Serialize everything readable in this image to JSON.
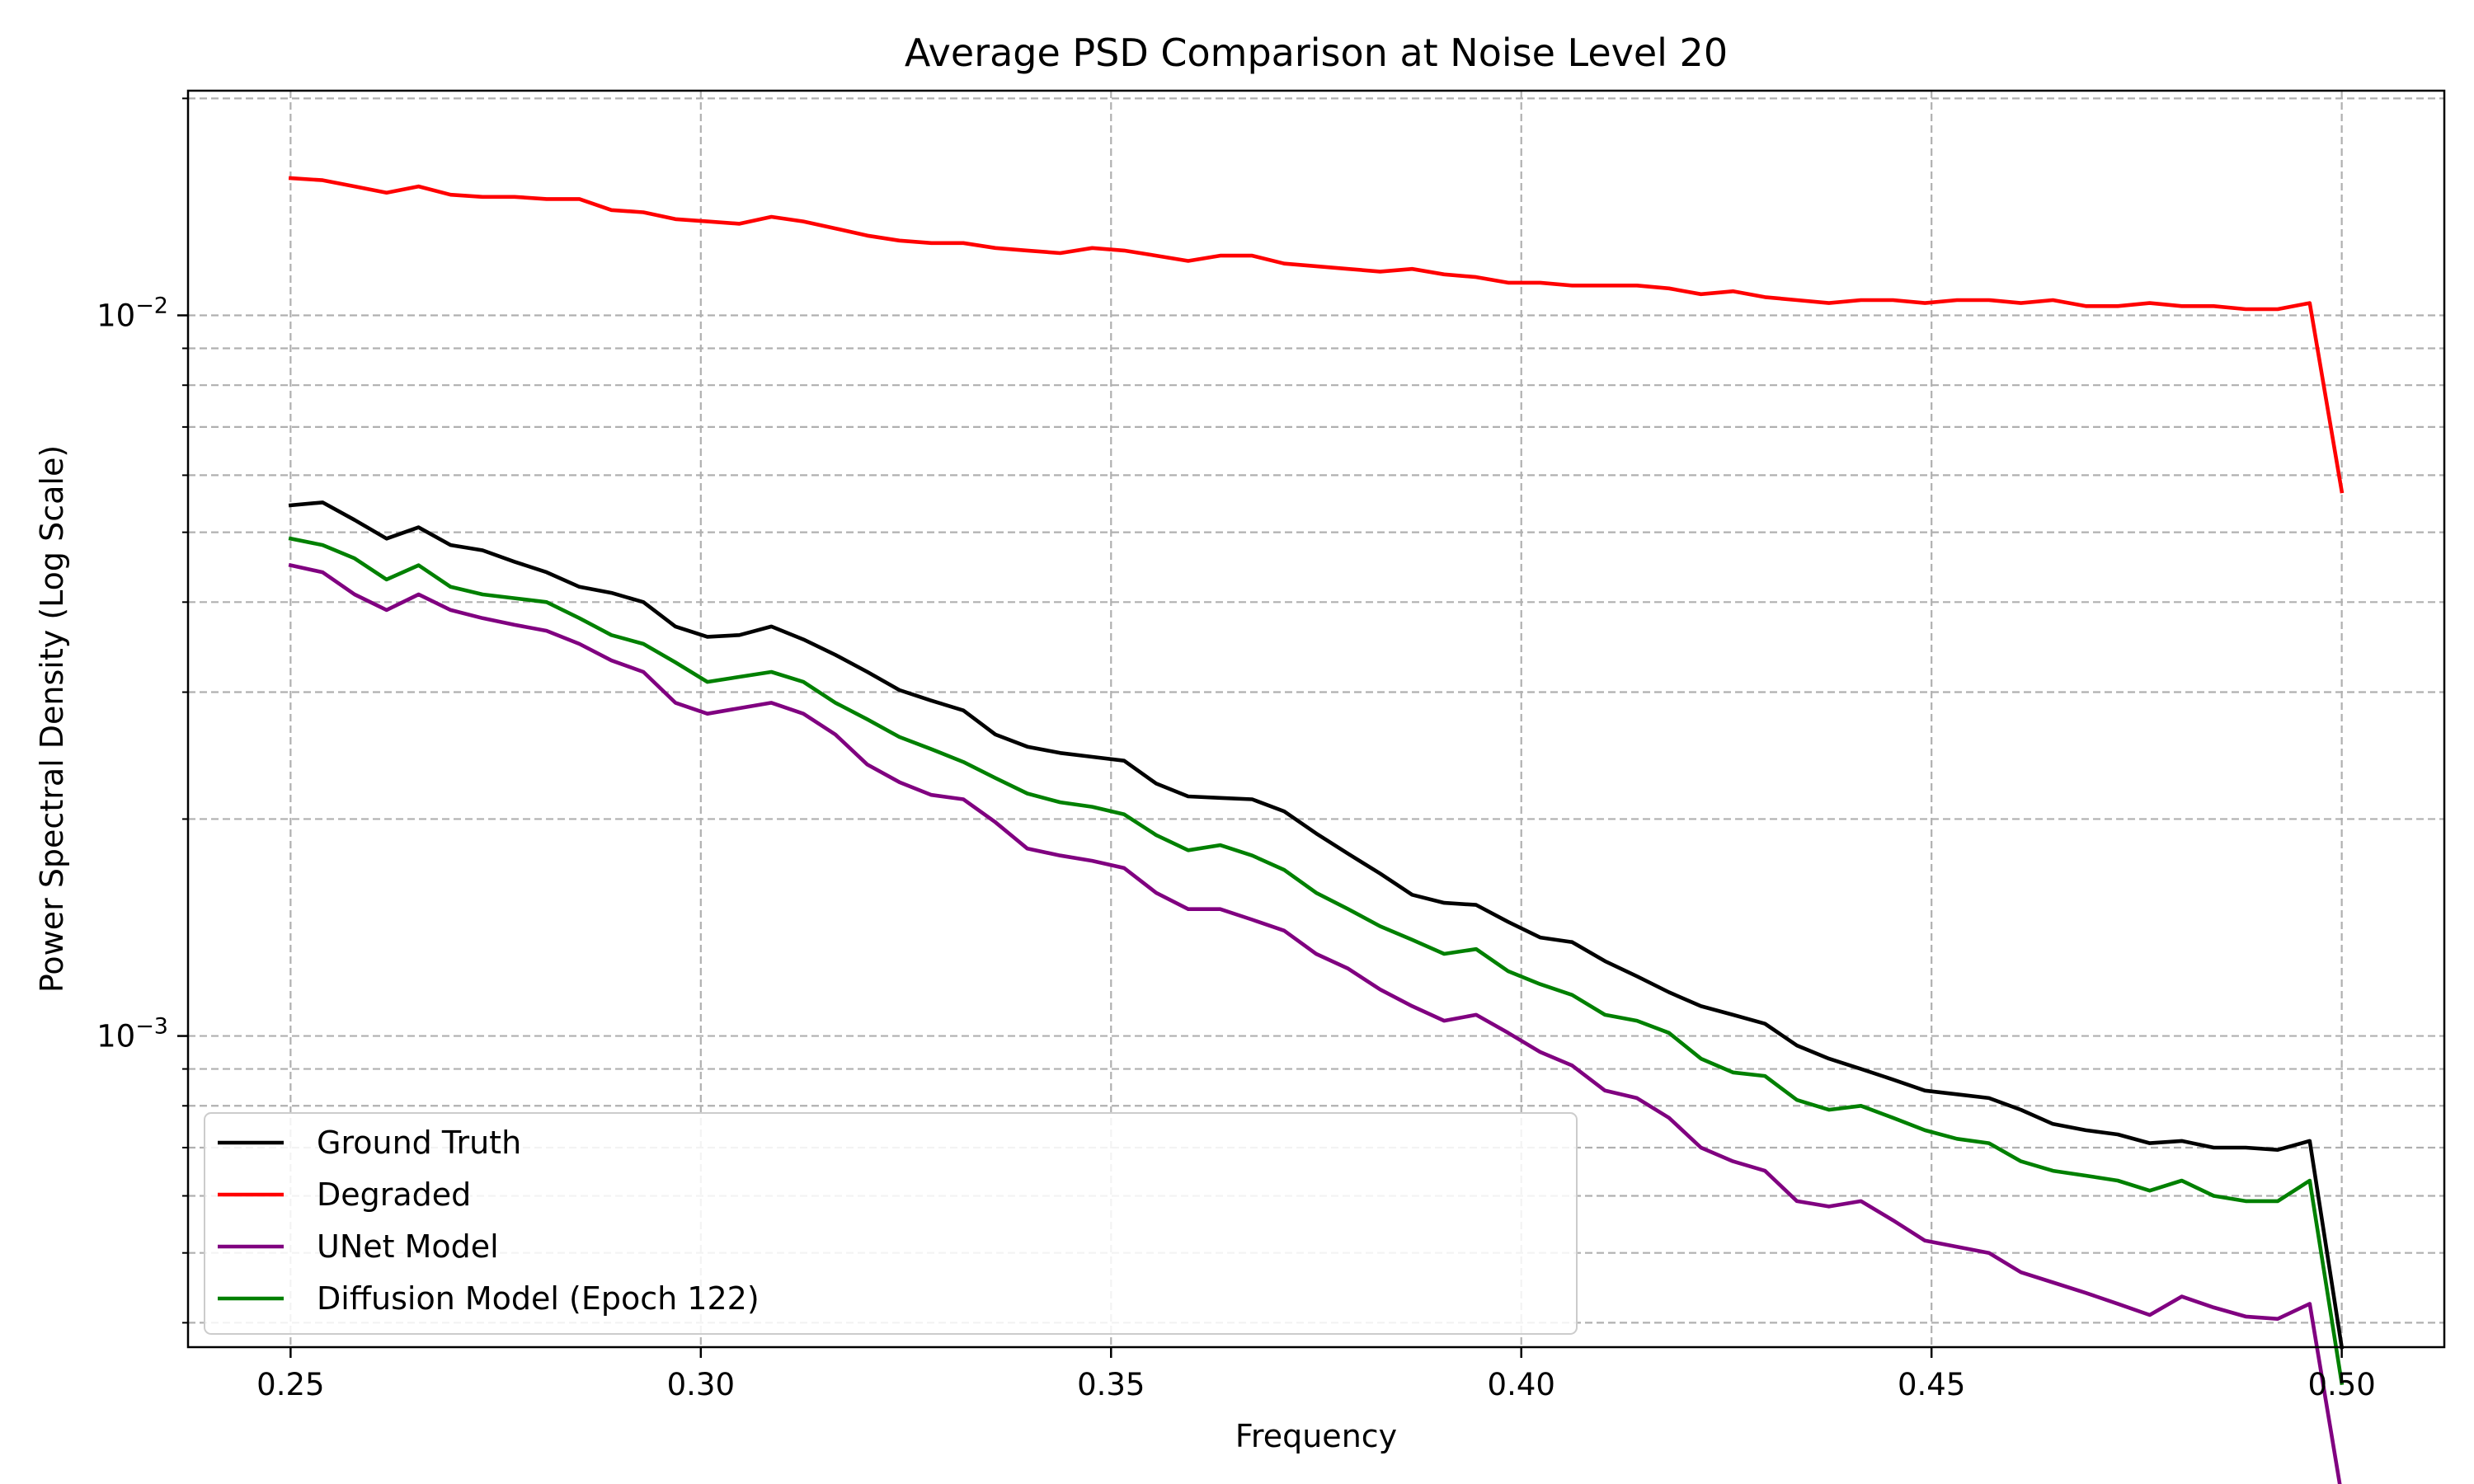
{
  "chart_data": {
    "type": "line",
    "title": "Average PSD Comparison at Noise Level 20",
    "xlabel": "Frequency",
    "ylabel": "Power Spectral Density (Log Scale)",
    "xlim": [
      0.2375,
      0.5125
    ],
    "ylim": [
      0.00037,
      0.0205
    ],
    "yscale": "log",
    "grid": "both (major and minor), dashed",
    "legend_position": "lower-left",
    "x_ticks": [
      "0.25",
      "0.30",
      "0.35",
      "0.40",
      "0.45",
      "0.50"
    ],
    "y_ticks": [
      {
        "base": "10",
        "exp": "−3",
        "value": 0.001
      },
      {
        "base": "10",
        "exp": "−2",
        "value": 0.01
      }
    ],
    "x": [
      0.25,
      0.2539,
      0.2578,
      0.2617,
      0.2656,
      0.2695,
      0.2734,
      0.2773,
      0.2812,
      0.2852,
      0.2891,
      0.293,
      0.2969,
      0.3008,
      0.3047,
      0.3086,
      0.3125,
      0.3164,
      0.3203,
      0.3242,
      0.3281,
      0.332,
      0.3359,
      0.3398,
      0.3438,
      0.3477,
      0.3516,
      0.3555,
      0.3594,
      0.3633,
      0.3672,
      0.3711,
      0.375,
      0.3789,
      0.3828,
      0.3867,
      0.3906,
      0.3945,
      0.3984,
      0.4023,
      0.4062,
      0.4102,
      0.4141,
      0.418,
      0.4219,
      0.4258,
      0.4297,
      0.4336,
      0.4375,
      0.4414,
      0.4453,
      0.4492,
      0.4531,
      0.457,
      0.4609,
      0.4648,
      0.4688,
      0.4727,
      0.4766,
      0.4805,
      0.4844,
      0.4883,
      0.4922,
      0.4961,
      0.5
    ],
    "series": [
      {
        "name": "Ground Truth",
        "color": "#000000",
        "values": [
          0.00545,
          0.0055,
          0.0052,
          0.0049,
          0.00508,
          0.0048,
          0.00472,
          0.00455,
          0.0044,
          0.0042,
          0.00412,
          0.004,
          0.0037,
          0.00358,
          0.0036,
          0.0037,
          0.00355,
          0.00338,
          0.0032,
          0.00302,
          0.00292,
          0.00283,
          0.00262,
          0.00252,
          0.00247,
          0.00244,
          0.00241,
          0.00224,
          0.00215,
          0.00214,
          0.00213,
          0.00205,
          0.00191,
          0.00179,
          0.00168,
          0.00157,
          0.00153,
          0.00152,
          0.00144,
          0.00137,
          0.00135,
          0.00127,
          0.00121,
          0.00115,
          0.0011,
          0.00107,
          0.00104,
          0.00097,
          0.00093,
          0.0009,
          0.00087,
          0.00084,
          0.00083,
          0.00082,
          0.00079,
          0.000755,
          0.00074,
          0.00073,
          0.00071,
          0.000715,
          0.0007,
          0.0007,
          0.000695,
          0.000715,
          0.00037
        ]
      },
      {
        "name": "Degraded",
        "color": "#ff0000",
        "values": [
          0.0155,
          0.0154,
          0.0151,
          0.0148,
          0.0151,
          0.0147,
          0.0146,
          0.0146,
          0.0145,
          0.0145,
          0.014,
          0.0139,
          0.0136,
          0.0135,
          0.0134,
          0.0137,
          0.0135,
          0.0132,
          0.0129,
          0.0127,
          0.0126,
          0.0126,
          0.0124,
          0.0123,
          0.0122,
          0.0124,
          0.0123,
          0.0121,
          0.0119,
          0.0121,
          0.0121,
          0.0118,
          0.0117,
          0.0116,
          0.0115,
          0.0116,
          0.0114,
          0.0113,
          0.0111,
          0.0111,
          0.011,
          0.011,
          0.011,
          0.0109,
          0.0107,
          0.0108,
          0.0106,
          0.0105,
          0.0104,
          0.0105,
          0.0105,
          0.0104,
          0.0105,
          0.0105,
          0.0104,
          0.0105,
          0.0103,
          0.0103,
          0.0104,
          0.0103,
          0.0103,
          0.0102,
          0.0102,
          0.0104,
          0.0057
        ]
      },
      {
        "name": "UNet Model",
        "color": "#800080",
        "values": [
          0.0045,
          0.0044,
          0.0041,
          0.0039,
          0.0041,
          0.0039,
          0.0038,
          0.00372,
          0.00365,
          0.0035,
          0.00332,
          0.0032,
          0.0029,
          0.0028,
          0.00285,
          0.0029,
          0.0028,
          0.00262,
          0.00238,
          0.00225,
          0.00216,
          0.00213,
          0.00198,
          0.00182,
          0.00178,
          0.00175,
          0.00171,
          0.00158,
          0.0015,
          0.0015,
          0.00145,
          0.0014,
          0.0013,
          0.00124,
          0.00116,
          0.0011,
          0.00105,
          0.00107,
          0.00101,
          0.00095,
          0.00091,
          0.00084,
          0.00082,
          0.00077,
          0.0007,
          0.00067,
          0.00065,
          0.00059,
          0.00058,
          0.00059,
          0.000555,
          0.00052,
          0.00051,
          0.0005,
          0.00047,
          0.000455,
          0.00044,
          0.000425,
          0.00041,
          0.000435,
          0.00042,
          0.000408,
          0.000405,
          0.000425,
          0.00023
        ]
      },
      {
        "name": "Diffusion Model (Epoch 122)",
        "color": "#008000",
        "values": [
          0.0049,
          0.0048,
          0.0046,
          0.0043,
          0.0045,
          0.0042,
          0.0041,
          0.00405,
          0.004,
          0.0038,
          0.0036,
          0.0035,
          0.0033,
          0.0031,
          0.00315,
          0.0032,
          0.0031,
          0.0029,
          0.00275,
          0.0026,
          0.0025,
          0.0024,
          0.00228,
          0.00217,
          0.00211,
          0.00208,
          0.00203,
          0.0019,
          0.00181,
          0.00184,
          0.00178,
          0.0017,
          0.00158,
          0.0015,
          0.00142,
          0.00136,
          0.0013,
          0.00132,
          0.00123,
          0.00118,
          0.00114,
          0.00107,
          0.00105,
          0.00101,
          0.00093,
          0.00089,
          0.00088,
          0.000815,
          0.00079,
          0.0008,
          0.00077,
          0.00074,
          0.00072,
          0.00071,
          0.00067,
          0.00065,
          0.00064,
          0.00063,
          0.00061,
          0.00063,
          0.0006,
          0.00059,
          0.00059,
          0.00063,
          0.00033
        ]
      }
    ]
  }
}
